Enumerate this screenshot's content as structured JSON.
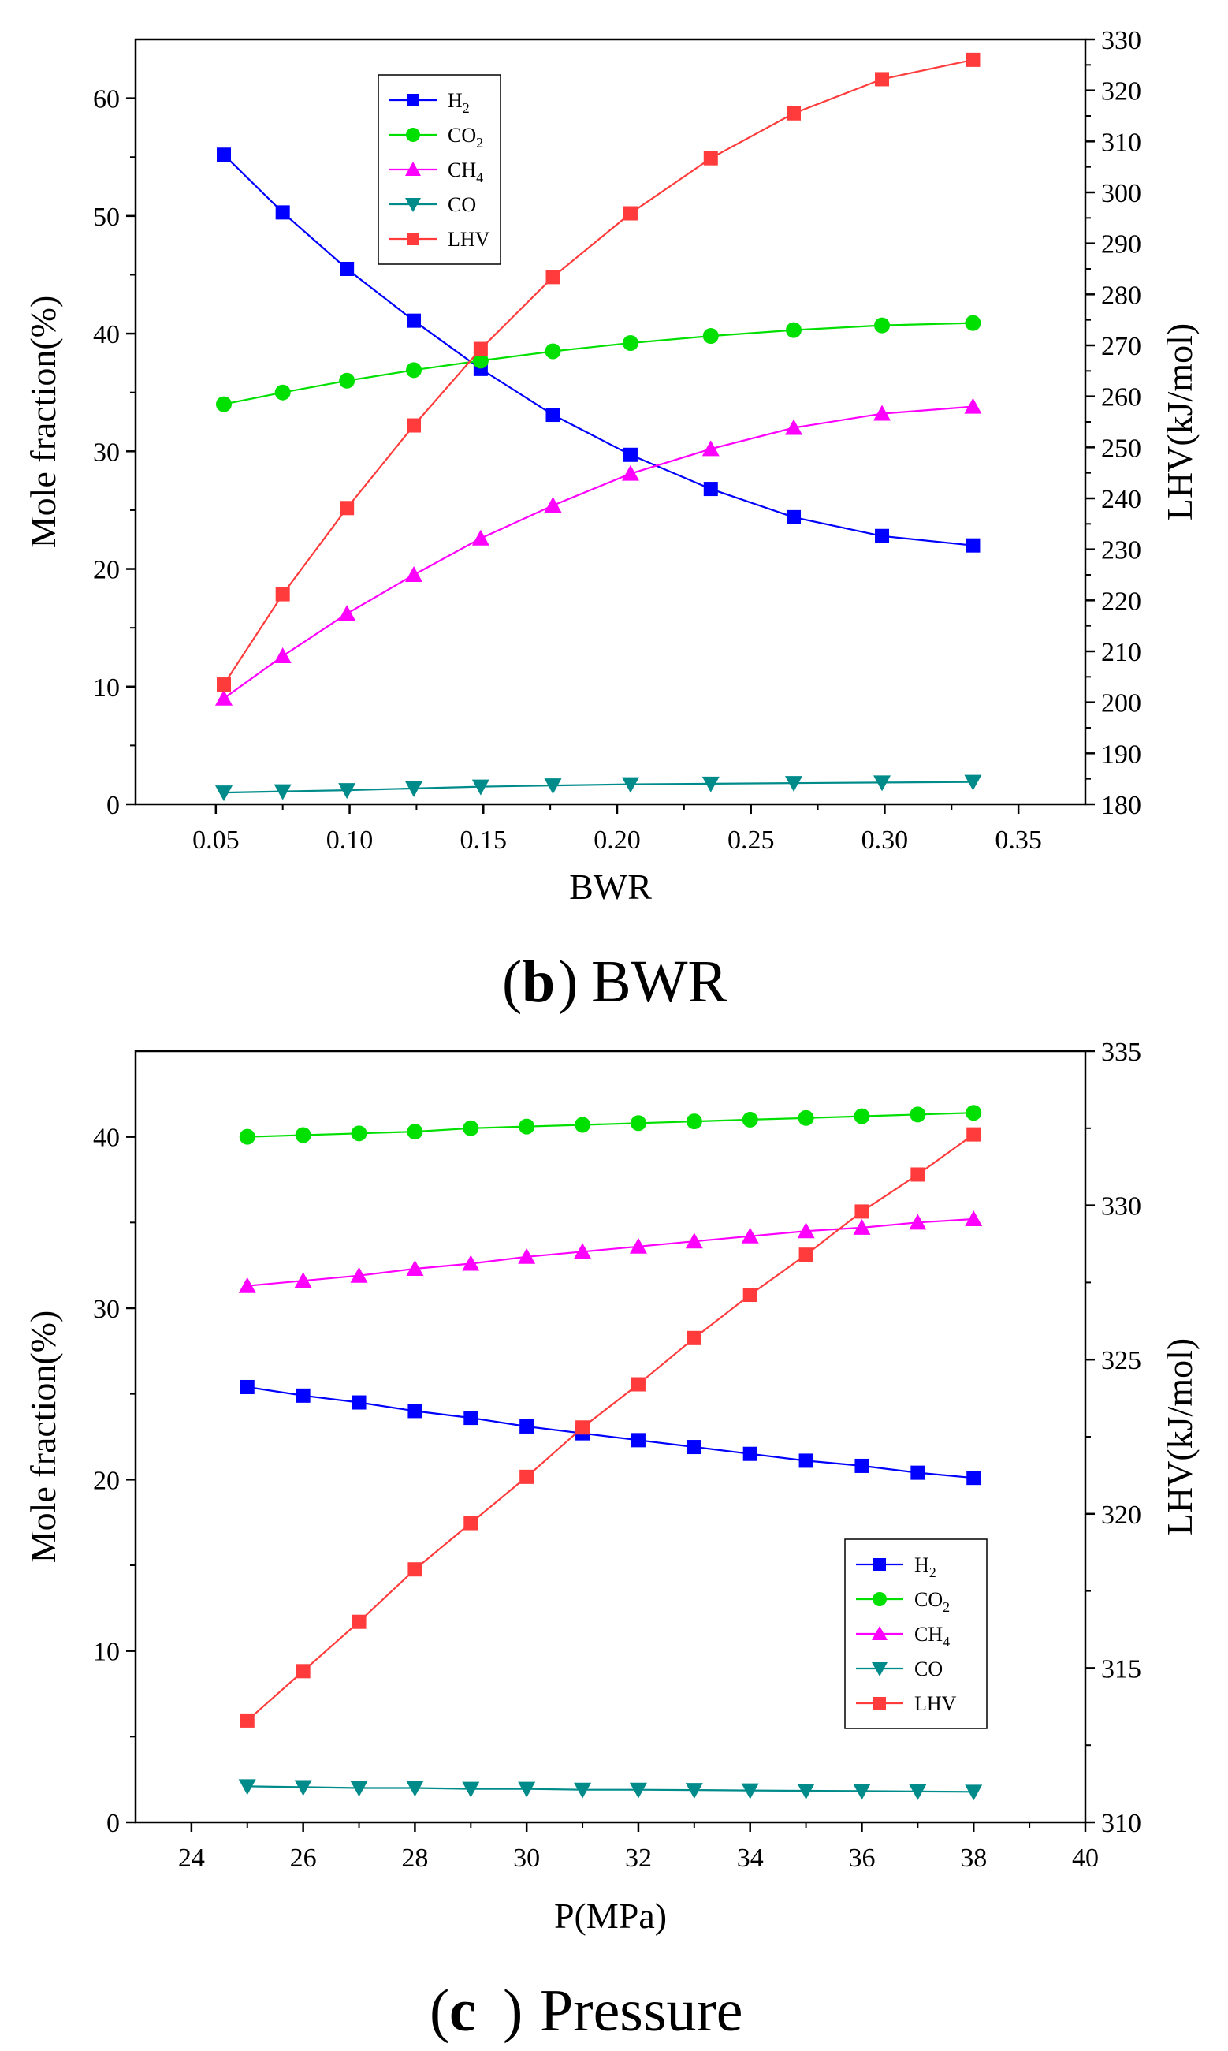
{
  "chart_data": [
    {
      "type": "line",
      "panel": "b",
      "caption": {
        "letter": "b",
        "text": "BWR",
        "open": "(",
        "close": ")"
      },
      "xlabel": "BWR",
      "ylabel": "Mole fraction(%)",
      "y2label": "LHV(kJ/mol)",
      "xlim": [
        0.02,
        0.375
      ],
      "ylim": [
        0,
        65
      ],
      "y2lim": [
        180,
        330
      ],
      "xticks": [
        0.05,
        0.1,
        0.15,
        0.2,
        0.25,
        0.3,
        0.35
      ],
      "xtick_labels": [
        "0.05",
        "0.10",
        "0.15",
        "0.20",
        "0.25",
        "0.30",
        "0.35"
      ],
      "yticks": [
        0,
        10,
        20,
        30,
        40,
        50,
        60
      ],
      "ytick_labels": [
        "0",
        "10",
        "20",
        "30",
        "40",
        "50",
        "60"
      ],
      "y2ticks": [
        180,
        190,
        200,
        210,
        220,
        230,
        240,
        250,
        260,
        270,
        280,
        290,
        300,
        310,
        320,
        330
      ],
      "y2tick_labels": [
        "180",
        "190",
        "200",
        "210",
        "220",
        "230",
        "240",
        "250",
        "260",
        "270",
        "280",
        "290",
        "300",
        "310",
        "320",
        "330"
      ],
      "legend_position": "top-left",
      "x": [
        0.053,
        0.075,
        0.099,
        0.124,
        0.149,
        0.176,
        0.205,
        0.235,
        0.266,
        0.299,
        0.333
      ],
      "series": [
        {
          "name": "H2",
          "label_base": "H",
          "label_sub": "2",
          "color": "#0000FF",
          "marker": "square",
          "axis": "left",
          "values": [
            55.2,
            50.3,
            45.5,
            41.1,
            37.0,
            33.1,
            29.7,
            26.8,
            24.4,
            22.8,
            22.0
          ]
        },
        {
          "name": "CO2",
          "label_base": "CO",
          "label_sub": "2",
          "color": "#00E000",
          "marker": "circle",
          "axis": "left",
          "values": [
            34.0,
            35.0,
            36.0,
            36.9,
            37.7,
            38.5,
            39.2,
            39.8,
            40.3,
            40.7,
            40.9
          ]
        },
        {
          "name": "CH4",
          "label_base": "CH",
          "label_sub": "4",
          "color": "#FF00FF",
          "marker": "triangle-up",
          "axis": "left",
          "values": [
            9.0,
            12.6,
            16.2,
            19.5,
            22.6,
            25.4,
            28.1,
            30.2,
            32.0,
            33.2,
            33.8
          ]
        },
        {
          "name": "CO",
          "label_base": "CO",
          "label_sub": "",
          "color": "#008B8B",
          "marker": "triangle-down",
          "axis": "left",
          "values": [
            1.0,
            1.1,
            1.2,
            1.35,
            1.5,
            1.6,
            1.7,
            1.75,
            1.8,
            1.85,
            1.9
          ]
        },
        {
          "name": "LHV",
          "label_base": "LHV",
          "label_sub": "",
          "color": "#FF3B3B",
          "marker": "square",
          "axis": "right",
          "values": [
            203.5,
            221.2,
            238.1,
            254.3,
            269.3,
            283.4,
            295.9,
            306.7,
            315.5,
            322.2,
            326.0
          ]
        }
      ]
    },
    {
      "type": "line",
      "panel": "c",
      "caption": {
        "letter": "c",
        "text": "Pressure",
        "open": "(",
        "close": ")"
      },
      "xlabel": "P(MPa)",
      "ylabel": "Mole fraction(%)",
      "y2label": "LHV(kJ/mol)",
      "xlim": [
        23,
        40
      ],
      "ylim": [
        0,
        45
      ],
      "y2lim": [
        310,
        335
      ],
      "xticks": [
        24,
        26,
        28,
        30,
        32,
        34,
        36,
        38,
        40
      ],
      "xtick_labels": [
        "24",
        "26",
        "28",
        "30",
        "32",
        "34",
        "36",
        "38",
        "40"
      ],
      "yticks": [
        0,
        10,
        20,
        30,
        40
      ],
      "ytick_labels": [
        "0",
        "10",
        "20",
        "30",
        "40"
      ],
      "y2ticks": [
        310,
        315,
        320,
        325,
        330,
        335
      ],
      "y2tick_labels": [
        "310",
        "315",
        "320",
        "325",
        "330",
        "335"
      ],
      "legend_position": "bottom-right",
      "x": [
        25,
        26,
        27,
        28,
        29,
        30,
        31,
        32,
        33,
        34,
        35,
        36,
        37,
        38
      ],
      "series": [
        {
          "name": "H2",
          "label_base": "H",
          "label_sub": "2",
          "color": "#0000FF",
          "marker": "square",
          "axis": "left",
          "values": [
            25.4,
            24.9,
            24.5,
            24.0,
            23.6,
            23.1,
            22.7,
            22.3,
            21.9,
            21.5,
            21.1,
            20.8,
            20.4,
            20.1
          ]
        },
        {
          "name": "CO2",
          "label_base": "CO",
          "label_sub": "2",
          "color": "#00E000",
          "marker": "circle",
          "axis": "left",
          "values": [
            40.0,
            40.1,
            40.2,
            40.3,
            40.5,
            40.6,
            40.7,
            40.8,
            40.9,
            41.0,
            41.1,
            41.2,
            41.3,
            41.4
          ]
        },
        {
          "name": "CH4",
          "label_base": "CH",
          "label_sub": "4",
          "color": "#FF00FF",
          "marker": "triangle-up",
          "axis": "left",
          "values": [
            31.3,
            31.6,
            31.9,
            32.3,
            32.6,
            33.0,
            33.3,
            33.6,
            33.9,
            34.2,
            34.5,
            34.7,
            35.0,
            35.2
          ]
        },
        {
          "name": "CO",
          "label_base": "CO",
          "label_sub": "",
          "color": "#008B8B",
          "marker": "triangle-down",
          "axis": "left",
          "values": [
            2.1,
            2.05,
            2.0,
            2.0,
            1.95,
            1.95,
            1.9,
            1.9,
            1.88,
            1.86,
            1.84,
            1.82,
            1.8,
            1.78
          ]
        },
        {
          "name": "LHV",
          "label_base": "LHV",
          "label_sub": "",
          "color": "#FF3B3B",
          "marker": "square",
          "axis": "right",
          "values": [
            313.3,
            314.9,
            316.5,
            318.2,
            319.7,
            321.2,
            322.8,
            324.2,
            325.7,
            327.1,
            328.4,
            329.8,
            331.0,
            332.3
          ]
        }
      ]
    }
  ]
}
